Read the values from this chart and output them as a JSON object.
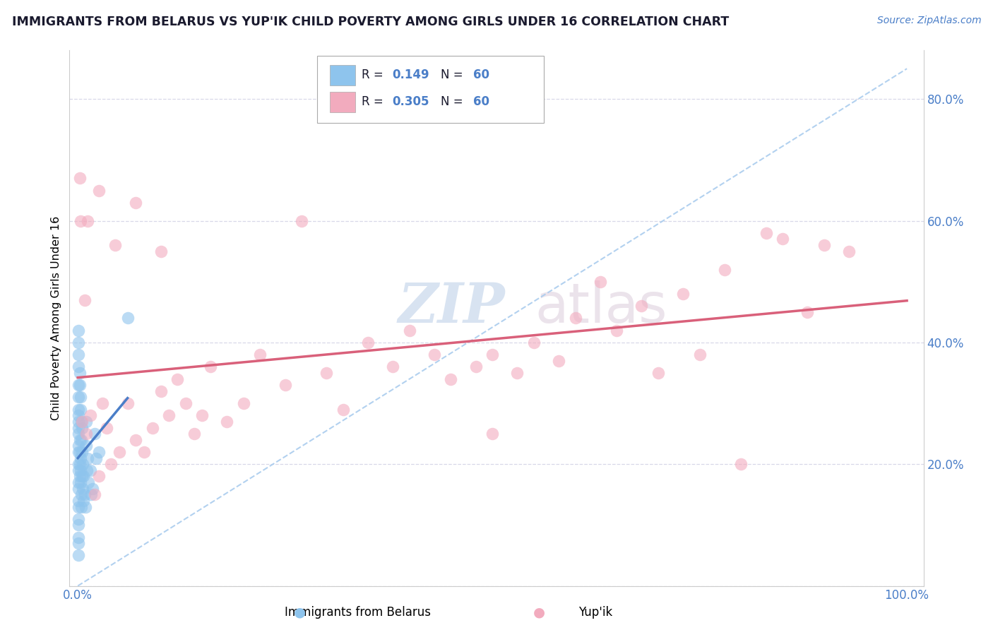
{
  "title": "IMMIGRANTS FROM BELARUS VS YUP'IK CHILD POVERTY AMONG GIRLS UNDER 16 CORRELATION CHART",
  "source": "Source: ZipAtlas.com",
  "ylabel": "Child Poverty Among Girls Under 16",
  "x_tick_labels": [
    "0.0%",
    "",
    "",
    "",
    "",
    "100.0%"
  ],
  "y_tick_labels": [
    "",
    "20.0%",
    "40.0%",
    "60.0%",
    "80.0%"
  ],
  "legend_r1": "R =  0.149",
  "legend_n1": "N = 60",
  "legend_r2": "R =  0.305",
  "legend_n2": "N = 60",
  "watermark_zip": "ZIP",
  "watermark_atlas": "atlas",
  "blue_color": "#8EC4ED",
  "pink_color": "#F2ABBE",
  "blue_line_color": "#4A7EC8",
  "pink_line_color": "#D9607A",
  "ref_line_color": "#AACCEE",
  "axis_color": "#4A7EC8",
  "title_color": "#1a1a2e",
  "background_color": "#ffffff",
  "grid_color": "#d8d8e8",
  "legend_text_color": "#1a1a2e",
  "legend_val_color": "#4A7EC8",
  "bottom_legend_labels": [
    "Immigrants from Belarus",
    "Yup'ik"
  ],
  "blue_scatter_x": [
    0.001,
    0.001,
    0.001,
    0.001,
    0.001,
    0.001,
    0.001,
    0.001,
    0.001,
    0.001,
    0.001,
    0.001,
    0.001,
    0.001,
    0.001,
    0.001,
    0.001,
    0.001,
    0.001,
    0.001,
    0.002,
    0.002,
    0.002,
    0.002,
    0.003,
    0.003,
    0.003,
    0.004,
    0.004,
    0.004,
    0.005,
    0.005,
    0.005,
    0.006,
    0.006,
    0.007,
    0.007,
    0.008,
    0.009,
    0.01,
    0.01,
    0.011,
    0.012,
    0.013,
    0.015,
    0.016,
    0.018,
    0.02,
    0.022,
    0.025,
    0.001,
    0.001,
    0.001,
    0.001,
    0.002,
    0.002,
    0.003,
    0.003,
    0.004,
    0.06
  ],
  "blue_scatter_y": [
    0.28,
    0.26,
    0.25,
    0.23,
    0.22,
    0.2,
    0.19,
    0.17,
    0.16,
    0.14,
    0.13,
    0.11,
    0.1,
    0.08,
    0.07,
    0.05,
    0.27,
    0.29,
    0.31,
    0.33,
    0.24,
    0.22,
    0.2,
    0.18,
    0.21,
    0.19,
    0.17,
    0.15,
    0.13,
    0.24,
    0.26,
    0.22,
    0.18,
    0.2,
    0.16,
    0.18,
    0.14,
    0.15,
    0.13,
    0.27,
    0.23,
    0.19,
    0.21,
    0.17,
    0.19,
    0.15,
    0.16,
    0.25,
    0.21,
    0.22,
    0.36,
    0.38,
    0.4,
    0.42,
    0.35,
    0.33,
    0.31,
    0.29,
    0.27,
    0.44
  ],
  "pink_scatter_x": [
    0.005,
    0.01,
    0.015,
    0.02,
    0.025,
    0.03,
    0.035,
    0.04,
    0.05,
    0.06,
    0.07,
    0.08,
    0.09,
    0.1,
    0.11,
    0.12,
    0.13,
    0.14,
    0.15,
    0.18,
    0.2,
    0.22,
    0.25,
    0.27,
    0.3,
    0.32,
    0.35,
    0.38,
    0.4,
    0.43,
    0.45,
    0.48,
    0.5,
    0.53,
    0.55,
    0.58,
    0.6,
    0.63,
    0.65,
    0.68,
    0.7,
    0.73,
    0.75,
    0.78,
    0.8,
    0.83,
    0.85,
    0.88,
    0.9,
    0.93,
    0.002,
    0.003,
    0.008,
    0.012,
    0.025,
    0.045,
    0.07,
    0.1,
    0.16,
    0.5
  ],
  "pink_scatter_y": [
    0.27,
    0.25,
    0.28,
    0.15,
    0.18,
    0.3,
    0.26,
    0.2,
    0.22,
    0.3,
    0.24,
    0.22,
    0.26,
    0.32,
    0.28,
    0.34,
    0.3,
    0.25,
    0.28,
    0.27,
    0.3,
    0.38,
    0.33,
    0.6,
    0.35,
    0.29,
    0.4,
    0.36,
    0.42,
    0.38,
    0.34,
    0.36,
    0.38,
    0.35,
    0.4,
    0.37,
    0.44,
    0.5,
    0.42,
    0.46,
    0.35,
    0.48,
    0.38,
    0.52,
    0.2,
    0.58,
    0.57,
    0.45,
    0.56,
    0.55,
    0.67,
    0.6,
    0.47,
    0.6,
    0.65,
    0.56,
    0.63,
    0.55,
    0.36,
    0.25
  ]
}
